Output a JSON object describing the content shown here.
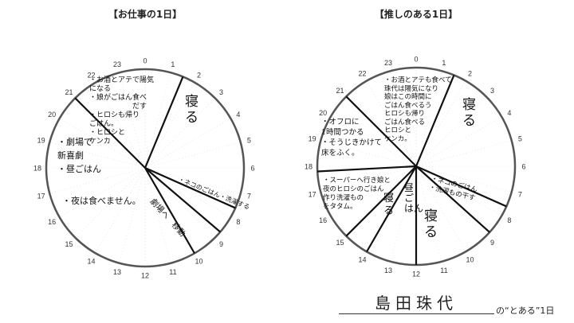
{
  "charts": [
    {
      "title": "【お仕事の1日】",
      "boundaries_hours": [
        1.5,
        7.6,
        8.7,
        10,
        21
      ],
      "notes": [
        "・お酒とアテで陽気\nになる\n・娘がごはん食べ\n　　　　　　だす\n・ヒロシも帰り\nごはん。\n・ヒロシと\nケンカ",
        "寝\nる",
        "・劇場で\n新喜劇\n・昼ごはん",
        "・夜は食べません。",
        "・ネコのごはん・洗濯する",
        "劇場へ　移動"
      ]
    },
    {
      "title": "【推しのある1日】",
      "boundaries_hours": [
        1.5,
        7.6,
        8.8,
        12,
        14,
        15,
        17.8,
        21
      ],
      "notes": [
        "・お酒とアテも食べて\n珠代は陽気になり\n娘はこの時間に\nごはん食べるう\nヒロシも帰り\nごはん食べる\nヒロシと\nケンカ。",
        "寝\nる",
        "・オフロに\n1時間つかる\n・そうじきかけて\n床をふく。",
        "・スーパーへ行き娘と\n夜のヒロシのごはん\n作り洗濯もの\nをタタム。",
        "寝\nる",
        "昼\nご\nはん",
        "寝\nる",
        "・ネコのごはん\n・洗濯もの干す"
      ]
    }
  ],
  "hour_labels": [
    "0",
    "1",
    "2",
    "3",
    "4",
    "5",
    "6",
    "7",
    "8",
    "9",
    "10",
    "11",
    "12",
    "13",
    "14",
    "15",
    "16",
    "17",
    "18",
    "19",
    "20",
    "21",
    "22",
    "23"
  ],
  "footer": {
    "name": "島田珠代",
    "suffix": "の“とある”1日"
  }
}
